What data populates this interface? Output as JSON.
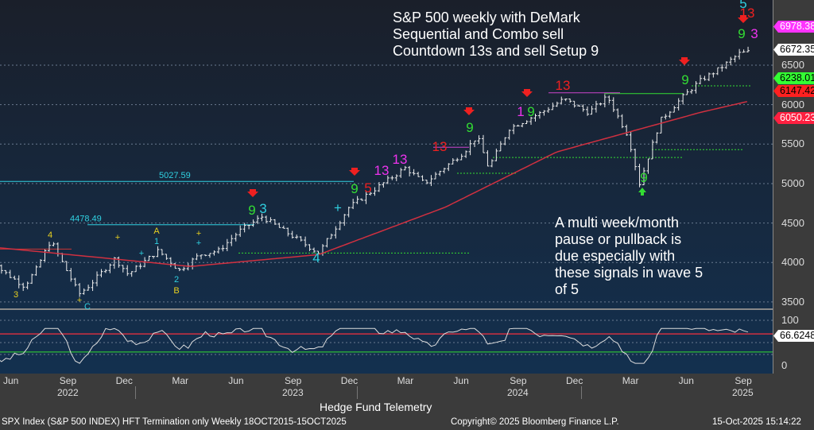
{
  "chart_data": {
    "type": "ohlc",
    "title": "S&P 500 weekly with DeMark Sequential and Combo sell Countdown 13s and sell Setup 9",
    "x_unit": "months since Jun 2022",
    "price_anchors": [
      [
        -1.2,
        4150
      ],
      [
        -0.5,
        3900
      ],
      [
        0.7,
        3700
      ],
      [
        1.3,
        3900
      ],
      [
        2.1,
        4280
      ],
      [
        3.6,
        3600
      ],
      [
        4.1,
        3700
      ],
      [
        5.5,
        4050
      ],
      [
        6.2,
        3850
      ],
      [
        7.8,
        4150
      ],
      [
        8.9,
        3900
      ],
      [
        10,
        4100
      ],
      [
        11,
        4150
      ],
      [
        12.1,
        4400
      ],
      [
        13.3,
        4580
      ],
      [
        16.3,
        4120
      ],
      [
        17.9,
        4700
      ],
      [
        20.9,
        5200
      ],
      [
        21.9,
        5000
      ],
      [
        24,
        5400
      ],
      [
        24.7,
        5600
      ],
      [
        25.3,
        5200
      ],
      [
        26.4,
        5700
      ],
      [
        28.1,
        5900
      ],
      [
        29.3,
        6070
      ],
      [
        30.6,
        5900
      ],
      [
        31.6,
        6100
      ],
      [
        32.7,
        5600
      ],
      [
        33.3,
        5000
      ],
      [
        34.4,
        5800
      ],
      [
        35.6,
        6100
      ],
      [
        36.5,
        6300
      ],
      [
        37.5,
        6450
      ],
      [
        38.6,
        6650
      ],
      [
        39.2,
        6672
      ]
    ],
    "ma_anchors": [
      [
        -1.2,
        4200
      ],
      [
        9.5,
        3950
      ],
      [
        16.3,
        4100
      ],
      [
        23,
        4700
      ],
      [
        28.9,
        5400
      ],
      [
        32.7,
        5650
      ],
      [
        36.5,
        5900
      ],
      [
        39.2,
        6050
      ]
    ],
    "ylim": [
      3400,
      7000
    ],
    "yticks": [
      3500,
      4000,
      4500,
      5000,
      5500,
      6000,
      6500
    ],
    "lower_panel": {
      "ylim": [
        0,
        100
      ],
      "yticks": [
        0,
        50,
        100
      ],
      "upper_band": 70,
      "lower_band": 30,
      "last": "66.6248"
    },
    "xticks": [
      "Jun",
      "Sep",
      "Dec",
      "Mar",
      "Jun",
      "Sep",
      "Dec",
      "Mar",
      "Jun",
      "Sep",
      "Dec",
      "Mar",
      "Jun",
      "Sep"
    ],
    "years": [
      "2022",
      "2023",
      "2024",
      "2025"
    ],
    "levels": [
      {
        "label": "5027.59",
        "value": 5027.59
      },
      {
        "label": "4478.49",
        "value": 4478.49
      }
    ],
    "price_labels": [
      {
        "text": "6978.38",
        "bg": "#ff33ff",
        "fg": "#fff"
      },
      {
        "text": "6672.35",
        "bg": "#ffffff",
        "fg": "#000"
      },
      {
        "text": "6238.01",
        "bg": "#33ff33",
        "fg": "#000"
      },
      {
        "text": "6147.42",
        "bg": "#ff2020",
        "fg": "#000"
      },
      {
        "text": "6050.23",
        "bg": "#ff2040",
        "fg": "#fff"
      }
    ],
    "markers": [
      {
        "t": "3",
        "c": "#e8d020"
      },
      {
        "t": "4",
        "c": "#e8d020"
      },
      {
        "t": "C",
        "c": "#30d0e0"
      },
      {
        "t": "+",
        "c": "#e8d020"
      },
      {
        "t": "+",
        "c": "#e8d020"
      },
      {
        "t": "A",
        "c": "#e8d020"
      },
      {
        "t": "1",
        "c": "#30d0e0"
      },
      {
        "t": "+",
        "c": "#30d0e0"
      },
      {
        "t": "2",
        "c": "#30d0e0"
      },
      {
        "t": "B",
        "c": "#e8d020"
      },
      {
        "t": "+",
        "c": "#e8d020"
      },
      {
        "t": "+",
        "c": "#30d0e0"
      },
      {
        "t": "9",
        "c": "#33dd33"
      },
      {
        "t": "3",
        "c": "#30d0e0"
      },
      {
        "t": "4",
        "c": "#30d0e0"
      },
      {
        "t": "+",
        "c": "#30d0e0"
      },
      {
        "t": "9",
        "c": "#33dd33"
      },
      {
        "t": "5",
        "c": "#ee2020"
      },
      {
        "t": "13",
        "c": "#ee33ee"
      },
      {
        "t": "13",
        "c": "#ee33ee"
      },
      {
        "t": "13",
        "c": "#ee2020"
      },
      {
        "t": "9",
        "c": "#33dd33"
      },
      {
        "t": "1",
        "c": "#ee33ee"
      },
      {
        "t": "9",
        "c": "#33dd33"
      },
      {
        "t": "13",
        "c": "#ee2020"
      },
      {
        "t": "9",
        "c": "#33dd33"
      },
      {
        "t": "9",
        "c": "#33dd33"
      },
      {
        "t": "9",
        "c": "#33dd33"
      },
      {
        "t": "3",
        "c": "#ee33ee"
      },
      {
        "t": "13",
        "c": "#ee2020"
      },
      {
        "t": "5",
        "c": "#30d0e0"
      }
    ]
  },
  "annotations": {
    "title": [
      "S&P 500 weekly with DeMark",
      "Sequential and Combo sell",
      "Countdown 13s and sell Setup 9"
    ],
    "note": [
      "A multi week/month",
      "pause or pullback is",
      "due especially with",
      "these signals in wave 5",
      "of 5"
    ]
  },
  "footer": {
    "brand": "Hedge Fund Telemetry",
    "security": "SPX Index (S&P 500 INDEX) HFT Termination only Weekly 18OCT2015-15OCT2025",
    "copyright": "Copyright© 2025 Bloomberg Finance L.P.",
    "timestamp": "15-Oct-2025 15:14:22"
  }
}
